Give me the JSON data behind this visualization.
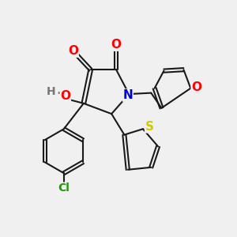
{
  "bg_color": "#f0f0f0",
  "bond_color": "#1a1a1a",
  "bond_width": 1.5,
  "atom_colors": {
    "O": "#ff0000",
    "N": "#0000cc",
    "S": "#cccc00",
    "Cl": "#1a9900",
    "H": "#777777",
    "C": "#1a1a1a"
  },
  "font_size": 10,
  "fig_width": 3.0,
  "fig_height": 3.0,
  "dpi": 100
}
